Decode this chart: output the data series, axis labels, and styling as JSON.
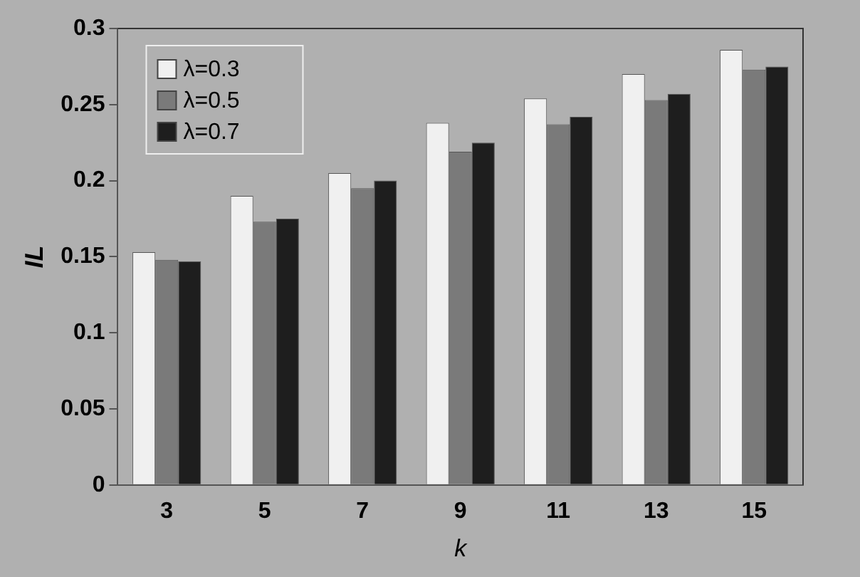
{
  "chart_data": {
    "type": "bar",
    "xlabel": "k",
    "ylabel": "IL",
    "categories": [
      "3",
      "5",
      "7",
      "9",
      "11",
      "13",
      "15"
    ],
    "series": [
      {
        "name": "λ=0.3",
        "color": "#f0f0f0",
        "values": [
          0.153,
          0.19,
          0.205,
          0.238,
          0.254,
          0.27,
          0.286
        ]
      },
      {
        "name": "λ=0.5",
        "color": "#7a7a7a",
        "values": [
          0.148,
          0.173,
          0.195,
          0.219,
          0.237,
          0.253,
          0.273
        ]
      },
      {
        "name": "λ=0.7",
        "color": "#1e1e1e",
        "values": [
          0.147,
          0.175,
          0.2,
          0.225,
          0.242,
          0.257,
          0.275
        ]
      }
    ],
    "ylim": [
      0,
      0.3
    ],
    "yticks": [
      0,
      0.05,
      0.1,
      0.15,
      0.2,
      0.25,
      0.3
    ],
    "grid": false,
    "legend": "top left"
  }
}
